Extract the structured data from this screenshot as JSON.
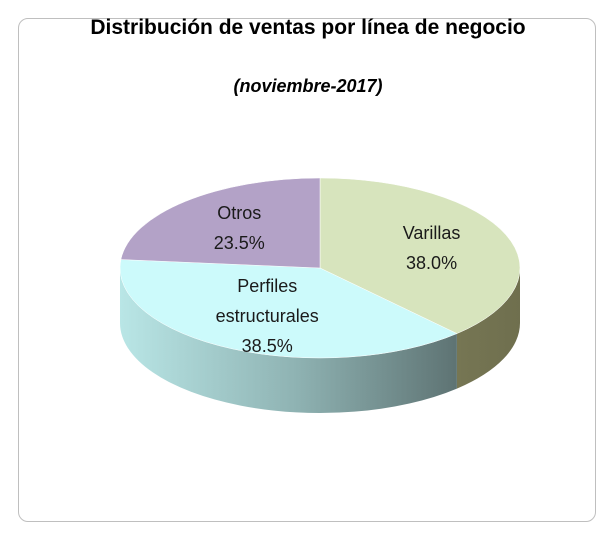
{
  "chart_data": {
    "type": "pie",
    "title": "Distribución de ventas por línea de negocio",
    "subtitle": "(noviembre-2017)",
    "categories": [
      "Varillas",
      "Perfiles estructurales",
      "Otros"
    ],
    "values": [
      38.0,
      38.5,
      23.5
    ],
    "value_labels": [
      "38.0%",
      "38.5%",
      "23.5%"
    ],
    "colors": [
      "#d7e4bd",
      "#ccfafb",
      "#b3a2c7"
    ]
  }
}
